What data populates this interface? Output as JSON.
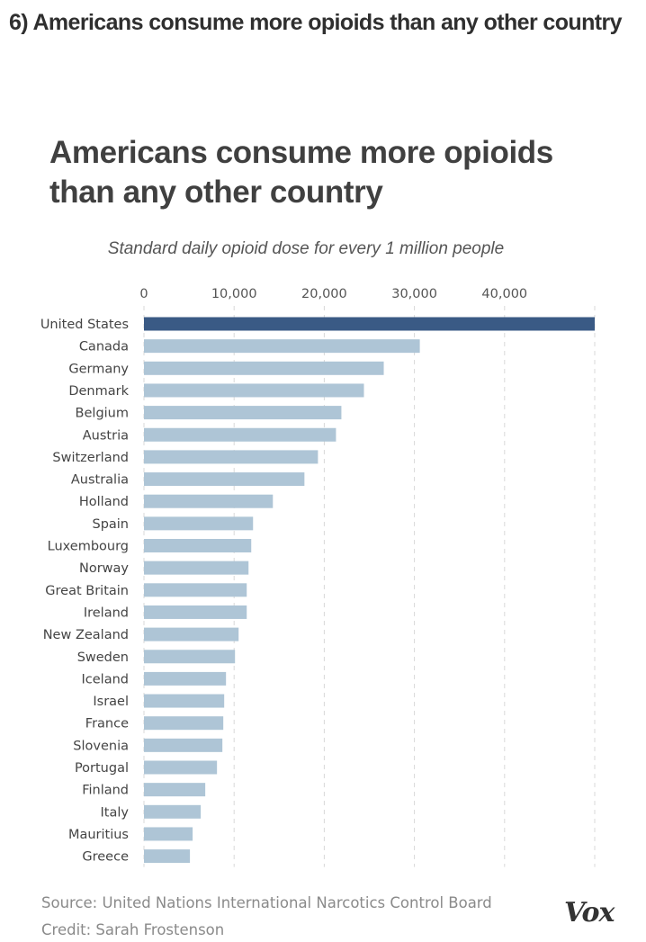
{
  "article_heading": "6) Americans consume more opioids than any other country",
  "chart_data": {
    "type": "bar",
    "orientation": "horizontal",
    "title": "Americans consume more opioids than any other country",
    "subtitle": "Standard daily opioid dose for every 1 million people",
    "xlabel": "",
    "ylabel": "",
    "xlim": [
      0,
      50000
    ],
    "xticks": [
      0,
      10000,
      20000,
      30000,
      40000
    ],
    "xtick_labels": [
      "0",
      "10,000",
      "20,000",
      "30,000",
      "40,000"
    ],
    "grid": "vertical dashed",
    "categories": [
      "United States",
      "Canada",
      "Germany",
      "Denmark",
      "Belgium",
      "Austria",
      "Switzerland",
      "Australia",
      "Holland",
      "Spain",
      "Luxembourg",
      "Norway",
      "Great Britain",
      "Ireland",
      "New Zealand",
      "Sweden",
      "Iceland",
      "Israel",
      "France",
      "Slovenia",
      "Portugal",
      "Finland",
      "Italy",
      "Mauritius",
      "Greece"
    ],
    "values": [
      50000,
      30600,
      26600,
      24400,
      21900,
      21300,
      19300,
      17800,
      14300,
      12100,
      11900,
      11600,
      11400,
      11400,
      10500,
      10100,
      9100,
      8900,
      8800,
      8700,
      8100,
      6800,
      6300,
      5400,
      5100
    ],
    "highlight": "United States",
    "colors": {
      "highlight": "#3a5a85",
      "default": "#aec5d6",
      "grid": "#d8d8d8"
    }
  },
  "source_text": "Source: United Nations International Narcotics Control Board",
  "credit_text": "Credit: Sarah Frostenson",
  "logo_text": "Vox"
}
